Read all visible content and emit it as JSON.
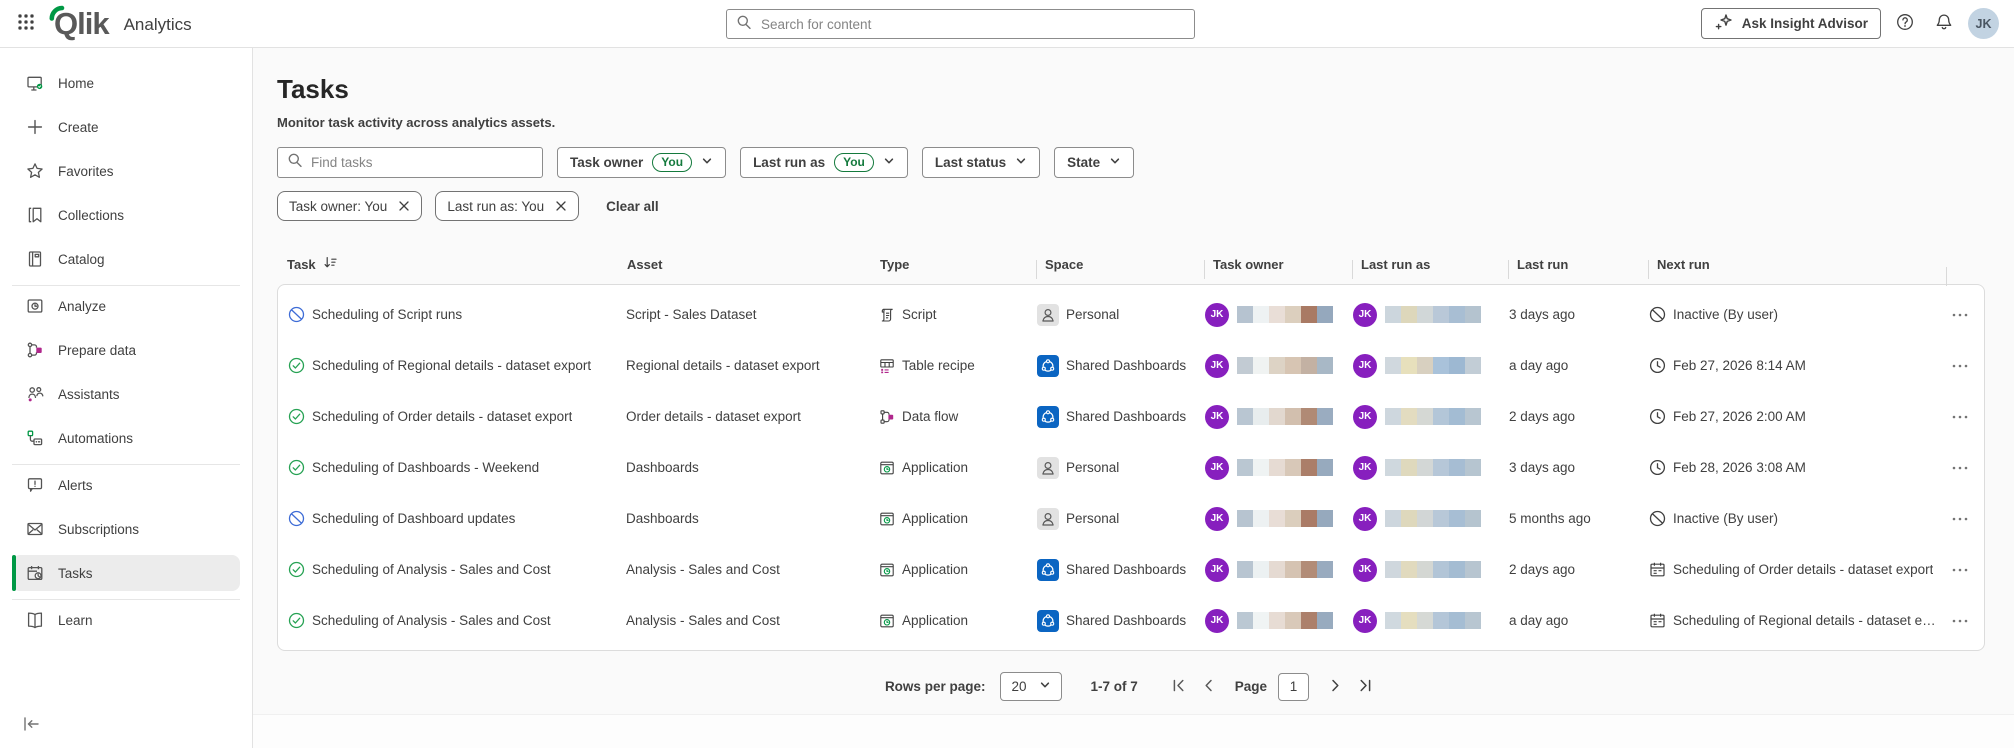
{
  "colors": {
    "accent_green": "#009845",
    "brand_blue": "#0b65c2",
    "avatar_purple": "#871fbe",
    "status_green": "#27a254",
    "status_blue": "#3e6cd6",
    "accent_magenta": "#b0278c"
  },
  "header": {
    "product": "Qlik",
    "app_name": "Analytics",
    "search_placeholder": "Search for content",
    "insight_button": "Ask Insight Advisor",
    "avatar_initials": "JK"
  },
  "sidebar": {
    "groups": [
      {
        "items": [
          {
            "label": "Home",
            "icon": "home-icon"
          },
          {
            "label": "Create",
            "icon": "plus-icon"
          },
          {
            "label": "Favorites",
            "icon": "star-icon"
          },
          {
            "label": "Collections",
            "icon": "bookmark-icon"
          },
          {
            "label": "Catalog",
            "icon": "catalog-icon"
          }
        ]
      },
      {
        "items": [
          {
            "label": "Analyze",
            "icon": "analyze-icon"
          },
          {
            "label": "Prepare data",
            "icon": "prepare-data-icon"
          },
          {
            "label": "Assistants",
            "icon": "assistants-icon"
          },
          {
            "label": "Automations",
            "icon": "automations-icon"
          }
        ]
      },
      {
        "items": [
          {
            "label": "Alerts",
            "icon": "alerts-icon"
          },
          {
            "label": "Subscriptions",
            "icon": "subscriptions-icon"
          },
          {
            "label": "Tasks",
            "icon": "tasks-icon",
            "selected": true
          }
        ]
      },
      {
        "items": [
          {
            "label": "Learn",
            "icon": "learn-icon"
          }
        ]
      }
    ]
  },
  "page": {
    "title": "Tasks",
    "subtitle": "Monitor task activity across analytics assets.",
    "filters": {
      "find_placeholder": "Find tasks",
      "dropdowns": [
        {
          "label": "Task owner",
          "badge": "You"
        },
        {
          "label": "Last run as",
          "badge": "You"
        },
        {
          "label": "Last status",
          "badge": null
        },
        {
          "label": "State",
          "badge": null
        }
      ],
      "chips": [
        "Task owner: You",
        "Last run as: You"
      ],
      "clear_all": "Clear all"
    },
    "table": {
      "columns": [
        "Task",
        "Asset",
        "Type",
        "Space",
        "Task owner",
        "Last run as",
        "Last run",
        "Next run"
      ],
      "rows": [
        {
          "task": "Scheduling of Script runs",
          "status_icon": "inactive-blue-icon",
          "asset": "Script - Sales Dataset",
          "type": "Script",
          "type_icon": "script-icon",
          "space": "Personal",
          "space_icon": "personal-space-icon",
          "owner_initials": "JK",
          "runas_initials": "JK",
          "owner_blur": [
            "#b6c3d0",
            "#eef2f3",
            "#e9ded7",
            "#dccfbe",
            "#a97a64",
            "#95a8bd"
          ],
          "runas_blur": [
            "#ccd6dd",
            "#ddd7bb",
            "#d1d7d8",
            "#b9c8d8",
            "#a8bed3",
            "#b4c3cf"
          ],
          "last_run": "3 days ago",
          "next_run_icon": "inactive-gray-icon",
          "next_run": "Inactive (By user)"
        },
        {
          "task": "Scheduling of Regional details - dataset export",
          "status_icon": "check-circle-icon",
          "asset": "Regional details - dataset export",
          "type": "Table recipe",
          "type_icon": "table-recipe-icon",
          "space": "Shared Dashboards",
          "space_icon": "shared-space-icon",
          "owner_initials": "JK",
          "runas_initials": "JK",
          "owner_blur": [
            "#c2cbd3",
            "#f0f3f2",
            "#ddd3c5",
            "#d7c5b3",
            "#c3b1a3",
            "#a8b8c6"
          ],
          "runas_blur": [
            "#d0d8de",
            "#e7e0bc",
            "#d8d0c0",
            "#a9c2da",
            "#9db8d2",
            "#c2cdd6"
          ],
          "last_run": "a day ago",
          "next_run_icon": "clock-icon",
          "next_run": "Feb 27, 2026 8:14 AM"
        },
        {
          "task": "Scheduling of Order details - dataset export",
          "status_icon": "check-circle-icon",
          "asset": "Order details - dataset export",
          "type": "Data flow",
          "type_icon": "data-flow-icon",
          "space": "Shared Dashboards",
          "space_icon": "shared-space-icon",
          "owner_initials": "JK",
          "runas_initials": "JK",
          "owner_blur": [
            "#b9c6d2",
            "#e8edee",
            "#e2d8cf",
            "#d2bfae",
            "#b08a75",
            "#9aacc0"
          ],
          "runas_blur": [
            "#ced7de",
            "#e3dcc0",
            "#d5d8d4",
            "#b3c6d8",
            "#a3bcd3",
            "#b8c6d1"
          ],
          "last_run": "2 days ago",
          "next_run_icon": "clock-icon",
          "next_run": "Feb 27, 2026 2:00 AM"
        },
        {
          "task": "Scheduling of Dashboards - Weekend",
          "status_icon": "check-circle-icon",
          "asset": "Dashboards",
          "type": "Application",
          "type_icon": "application-icon",
          "space": "Personal",
          "space_icon": "personal-space-icon",
          "owner_initials": "JK",
          "runas_initials": "JK",
          "owner_blur": [
            "#bac7d2",
            "#eff3f3",
            "#e6dbd3",
            "#d8c8b8",
            "#ab7e69",
            "#97aabe"
          ],
          "runas_blur": [
            "#cfd8de",
            "#dfd9bd",
            "#d3d7d6",
            "#b6c7d8",
            "#a6bdd3",
            "#b6c5d0"
          ],
          "last_run": "3 days ago",
          "next_run_icon": "clock-icon",
          "next_run": "Feb 28, 2026 3:08 AM"
        },
        {
          "task": "Scheduling of Dashboard updates",
          "status_icon": "inactive-blue-icon",
          "asset": "Dashboards",
          "type": "Application",
          "type_icon": "application-icon",
          "space": "Personal",
          "space_icon": "personal-space-icon",
          "owner_initials": "JK",
          "runas_initials": "JK",
          "owner_blur": [
            "#b7c4d0",
            "#edf1f2",
            "#e8ddd6",
            "#dbcebd",
            "#aa7b66",
            "#96a9bd"
          ],
          "runas_blur": [
            "#cdd6dd",
            "#ded8bc",
            "#d2d6d6",
            "#b8c8d8",
            "#a7bed4",
            "#b5c4cf"
          ],
          "last_run": "5 months ago",
          "next_run_icon": "inactive-gray-icon",
          "next_run": "Inactive (By user)"
        },
        {
          "task": "Scheduling of Analysis - Sales and Cost",
          "status_icon": "check-circle-icon",
          "asset": "Analysis - Sales and Cost",
          "type": "Application",
          "type_icon": "application-icon",
          "space": "Shared Dashboards",
          "space_icon": "shared-space-icon",
          "owner_initials": "JK",
          "runas_initials": "JK",
          "owner_blur": [
            "#b8c5d1",
            "#ecf1f2",
            "#e5dad2",
            "#d5c3b2",
            "#b28c77",
            "#99abbf"
          ],
          "runas_blur": [
            "#cfd7dd",
            "#e1dabe",
            "#d4d7d3",
            "#b2c5d7",
            "#a4bcd2",
            "#b7c5d0"
          ],
          "last_run": "2 days ago",
          "next_run_icon": "calendar-icon",
          "next_run": "Scheduling of Order details - dataset export"
        },
        {
          "task": "Scheduling of Analysis - Sales and Cost",
          "status_icon": "check-circle-icon",
          "asset": "Analysis - Sales and Cost",
          "type": "Application",
          "type_icon": "application-icon",
          "space": "Shared Dashboards",
          "space_icon": "shared-space-icon",
          "owner_initials": "JK",
          "runas_initials": "JK",
          "owner_blur": [
            "#bbc8d3",
            "#f0f4f4",
            "#e7dcd4",
            "#d9c9b9",
            "#ac806b",
            "#98abbf"
          ],
          "runas_blur": [
            "#d0d9df",
            "#e5debf",
            "#d6d9d5",
            "#b4c6d8",
            "#a5bdd3",
            "#b8c6d1"
          ],
          "last_run": "a day ago",
          "next_run_icon": "calendar-icon",
          "next_run": "Scheduling of Regional details - dataset e…"
        }
      ]
    },
    "pagination": {
      "rows_per_page_label": "Rows per page:",
      "rows_per_page_value": "20",
      "range": "1-7 of 7",
      "page_label": "Page",
      "page_value": "1"
    }
  }
}
